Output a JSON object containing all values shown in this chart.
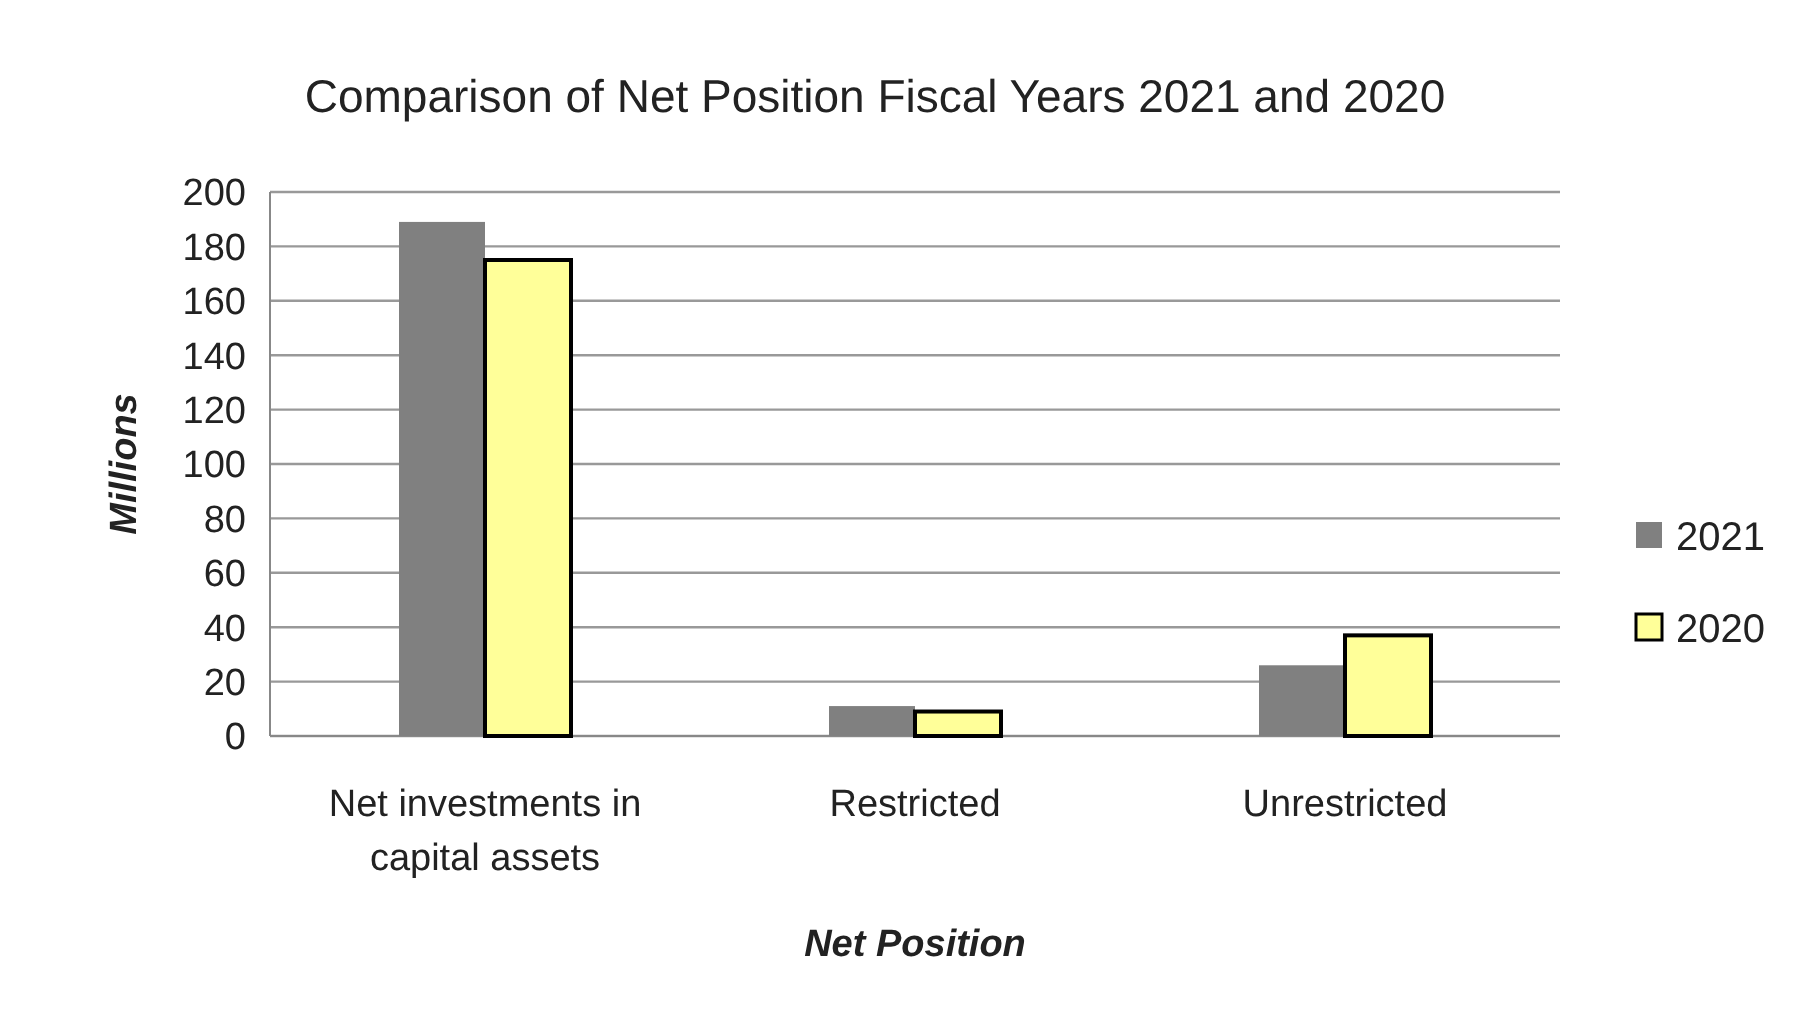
{
  "chart_data": {
    "type": "bar",
    "title": "Comparison of Net Position Fiscal Years 2021 and 2020",
    "xlabel": "Net Position",
    "ylabel": "Millions",
    "categories": [
      "Net investments in capital assets",
      "Restricted",
      "Unrestricted"
    ],
    "series": [
      {
        "name": "2021",
        "color": "#808080",
        "values": [
          189,
          11,
          26
        ]
      },
      {
        "name": "2020",
        "color": "#ffff99",
        "values": [
          175,
          9,
          37
        ]
      }
    ],
    "ylim": [
      0,
      200
    ],
    "yticks": [
      0,
      20,
      40,
      60,
      80,
      100,
      120,
      140,
      160,
      180,
      200
    ],
    "grid": "y",
    "legend": "right"
  }
}
